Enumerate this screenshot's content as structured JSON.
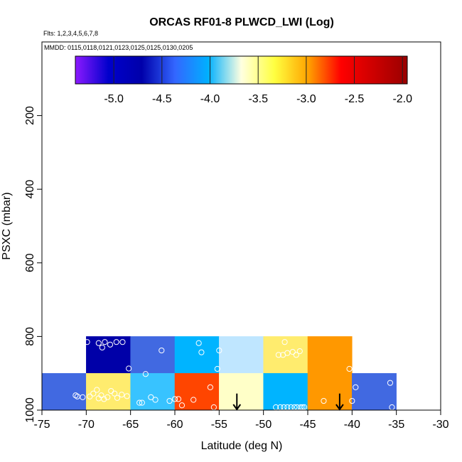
{
  "chart_data": {
    "type": "heatmap",
    "title": "ORCAS RF01-8 PLWCD_LWI (Log)",
    "flights_label": "Flts: 1,2,3,4,5,6,7,8",
    "dates_label": "MMDD: 0115,0118,0121,0123,0125,0125,0130,0205",
    "xlabel": "Latitude (deg N)",
    "ylabel": "PSXC (mbar)",
    "xlim": [
      -75,
      -30
    ],
    "ylim": [
      1000,
      0
    ],
    "xticks": [
      -75,
      -70,
      -65,
      -60,
      -55,
      -50,
      -45,
      -40,
      -35,
      -30
    ],
    "yticks": [
      200,
      400,
      600,
      800,
      1000
    ],
    "colorbar": {
      "range": [
        -5.4,
        -1.95
      ],
      "ticks": [
        "-5.0",
        "-4.5",
        "-4.0",
        "-3.5",
        "-3.0",
        "-2.5",
        "-2.0"
      ],
      "tick_values": [
        -5.0,
        -4.5,
        -4.0,
        -3.5,
        -3.0,
        -2.5,
        -2.0
      ],
      "colors": [
        "#8c1aff",
        "#0000cc",
        "#0000aa",
        "#3366ff",
        "#00b0ff",
        "#ffffe0",
        "#ffff40",
        "#ffa500",
        "#ff0000",
        "#cc0000",
        "#990000"
      ]
    },
    "cells": [
      {
        "lat": [
          -70,
          -65
        ],
        "p": [
          800,
          900
        ],
        "value": -5.0,
        "color": "#0000a8"
      },
      {
        "lat": [
          -65,
          -60
        ],
        "p": [
          800,
          900
        ],
        "value": -4.4,
        "color": "#4169e1"
      },
      {
        "lat": [
          -60,
          -55
        ],
        "p": [
          800,
          900
        ],
        "value": -4.05,
        "color": "#00b4ff"
      },
      {
        "lat": [
          -55,
          -50
        ],
        "p": [
          800,
          900
        ],
        "value": -3.7,
        "color": "#bfe6ff"
      },
      {
        "lat": [
          -50,
          -45
        ],
        "p": [
          800,
          900
        ],
        "value": -3.2,
        "color": "#ffec6e"
      },
      {
        "lat": [
          -45,
          -40
        ],
        "p": [
          800,
          900
        ],
        "value": -2.9,
        "color": "#ff9800"
      },
      {
        "lat": [
          -75,
          -70
        ],
        "p": [
          900,
          1000
        ],
        "value": -4.4,
        "color": "#4169e1"
      },
      {
        "lat": [
          -70,
          -65
        ],
        "p": [
          900,
          1000
        ],
        "value": -3.2,
        "color": "#ffec6e"
      },
      {
        "lat": [
          -65,
          -60
        ],
        "p": [
          900,
          1000
        ],
        "value": -4.0,
        "color": "#38c3ff"
      },
      {
        "lat": [
          -60,
          -55
        ],
        "p": [
          900,
          1000
        ],
        "value": -2.7,
        "color": "#ff4500"
      },
      {
        "lat": [
          -55,
          -50
        ],
        "p": [
          900,
          1000
        ],
        "value": -3.45,
        "color": "#ffffc8"
      },
      {
        "lat": [
          -50,
          -45
        ],
        "p": [
          900,
          1000
        ],
        "value": -4.05,
        "color": "#00b4ff"
      },
      {
        "lat": [
          -45,
          -40
        ],
        "p": [
          900,
          1000
        ],
        "value": -2.9,
        "color": "#ff9800"
      },
      {
        "lat": [
          -40,
          -35
        ],
        "p": [
          900,
          1000
        ],
        "value": -4.4,
        "color": "#4169e1"
      }
    ],
    "arrows": [
      {
        "lat": -53,
        "p_from": 955,
        "p_to": 1000
      },
      {
        "lat": -41.4,
        "p_from": 955,
        "p_to": 1000
      }
    ],
    "points": [
      [
        -71.2,
        960
      ],
      [
        -71.0,
        963
      ],
      [
        -70.4,
        965
      ],
      [
        -69.6,
        963
      ],
      [
        -69.2,
        955
      ],
      [
        -68.8,
        945
      ],
      [
        -68.6,
        968
      ],
      [
        -68.3,
        960
      ],
      [
        -68.0,
        970
      ],
      [
        -67.6,
        965
      ],
      [
        -67.2,
        948
      ],
      [
        -66.8,
        955
      ],
      [
        -66.5,
        967
      ],
      [
        -66.0,
        958
      ],
      [
        -65.4,
        962
      ],
      [
        -69.9,
        815
      ],
      [
        -68.6,
        818
      ],
      [
        -68.2,
        830
      ],
      [
        -67.9,
        815
      ],
      [
        -67.3,
        822
      ],
      [
        -66.6,
        815
      ],
      [
        -65.9,
        815
      ],
      [
        -65.2,
        887
      ],
      [
        -63.3,
        902
      ],
      [
        -61.5,
        838
      ],
      [
        -60.6,
        975
      ],
      [
        -60.0,
        970
      ],
      [
        -59.6,
        970
      ],
      [
        -59.2,
        987
      ],
      [
        -57.9,
        972
      ],
      [
        -57.3,
        818
      ],
      [
        -57.0,
        843
      ],
      [
        -64.0,
        980
      ],
      [
        -63.7,
        980
      ],
      [
        -62.7,
        965
      ],
      [
        -62.2,
        972
      ],
      [
        -56.0,
        938
      ],
      [
        -55.6,
        993
      ],
      [
        -55.2,
        888
      ],
      [
        -55.0,
        838
      ],
      [
        -48.6,
        1003
      ],
      [
        -48.1,
        1003
      ],
      [
        -47.7,
        1003
      ],
      [
        -47.3,
        1003
      ],
      [
        -46.9,
        1003
      ],
      [
        -46.5,
        1000
      ],
      [
        -46.2,
        1003
      ],
      [
        -45.8,
        1000
      ],
      [
        -45.6,
        995
      ],
      [
        -45.4,
        992
      ],
      [
        -48.3,
        850
      ],
      [
        -47.8,
        850
      ],
      [
        -47.3,
        845
      ],
      [
        -46.7,
        842
      ],
      [
        -46.3,
        850
      ],
      [
        -45.9,
        840
      ],
      [
        -47.6,
        815
      ],
      [
        -43.2,
        975
      ],
      [
        -40.3,
        888
      ],
      [
        -39.6,
        938
      ],
      [
        -40.0,
        975
      ],
      [
        -35.7,
        926
      ],
      [
        -35.5,
        1000
      ]
    ]
  }
}
